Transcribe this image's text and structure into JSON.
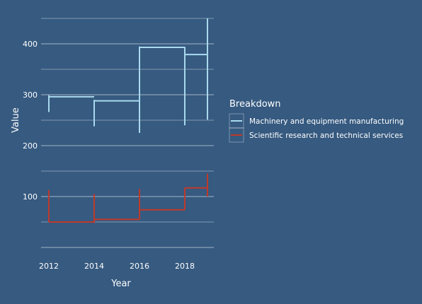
{
  "chart_data": {
    "type": "step",
    "xlabel": "Year",
    "ylabel": "Value",
    "x_ticks": [
      "2012",
      "2014",
      "2016",
      "2018"
    ],
    "y_ticks": [
      "100",
      "200",
      "300",
      "400"
    ],
    "xlim": [
      2011.6,
      2019.2
    ],
    "ylim": [
      0,
      455
    ],
    "grid": "horizontal",
    "legend": {
      "title": "Breakdown",
      "placement": "right"
    },
    "series": [
      {
        "name": "Machinery and equipment manufacturing",
        "color": "#a9d9ee",
        "segments": [
          {
            "x0": 2012,
            "x1": 2014,
            "y": 296,
            "low": 266,
            "high": 299
          },
          {
            "x0": 2014,
            "x1": 2016,
            "y": 288,
            "low": 238,
            "high": 290
          },
          {
            "x0": 2016,
            "x1": 2018,
            "y": 393,
            "low": 225,
            "high": 395
          },
          {
            "x0": 2018,
            "x1": 2019,
            "y": 379,
            "low": 240,
            "high": 394
          },
          {
            "x0": 2019,
            "x1": 2019,
            "y": 379,
            "low": 251,
            "high": 450
          }
        ]
      },
      {
        "name": "Scientific research and technical services",
        "color": "#c0392b",
        "segments": [
          {
            "x0": 2012,
            "x1": 2014,
            "y": 50,
            "low": 50,
            "high": 113
          },
          {
            "x0": 2014,
            "x1": 2016,
            "y": 55,
            "low": 48,
            "high": 105
          },
          {
            "x0": 2016,
            "x1": 2018,
            "y": 74,
            "low": 55,
            "high": 115
          },
          {
            "x0": 2018,
            "x1": 2019,
            "y": 117,
            "low": 74,
            "high": 117
          },
          {
            "x0": 2019,
            "x1": 2019,
            "y": 117,
            "low": 100,
            "high": 145
          }
        ]
      }
    ]
  }
}
